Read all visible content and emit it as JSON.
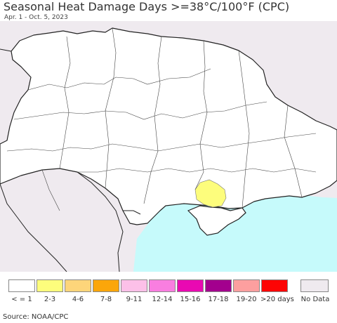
{
  "title": "Seasonal Heat Damage Days >=38°C/100°F (CPC)",
  "subtitle": "Apr. 1 - Oct. 5, 2023",
  "source": "Source: NOAA/CPC",
  "colors": {
    "outside": "#efeaef",
    "land": "#ffffff",
    "sea": "#c6fafb",
    "border": "#222222",
    "highlight": "#fdfd7c"
  },
  "legend": [
    {
      "label": "< = 1",
      "color": "#ffffff"
    },
    {
      "label": "2-3",
      "color": "#fdfd7c"
    },
    {
      "label": "4-6",
      "color": "#fdd57a"
    },
    {
      "label": "7-8",
      "color": "#fba60a"
    },
    {
      "label": "9-11",
      "color": "#fcc0e8"
    },
    {
      "label": "12-14",
      "color": "#f97ee0"
    },
    {
      "label": "15-16",
      "color": "#e909b2"
    },
    {
      "label": "17-18",
      "color": "#a3008e"
    },
    {
      "label": "19-20",
      "color": "#fd9f9f"
    },
    {
      "label": ">20 days",
      "color": "#fd0404"
    },
    {
      "label": "No Data",
      "color": "#efeaef"
    }
  ]
}
